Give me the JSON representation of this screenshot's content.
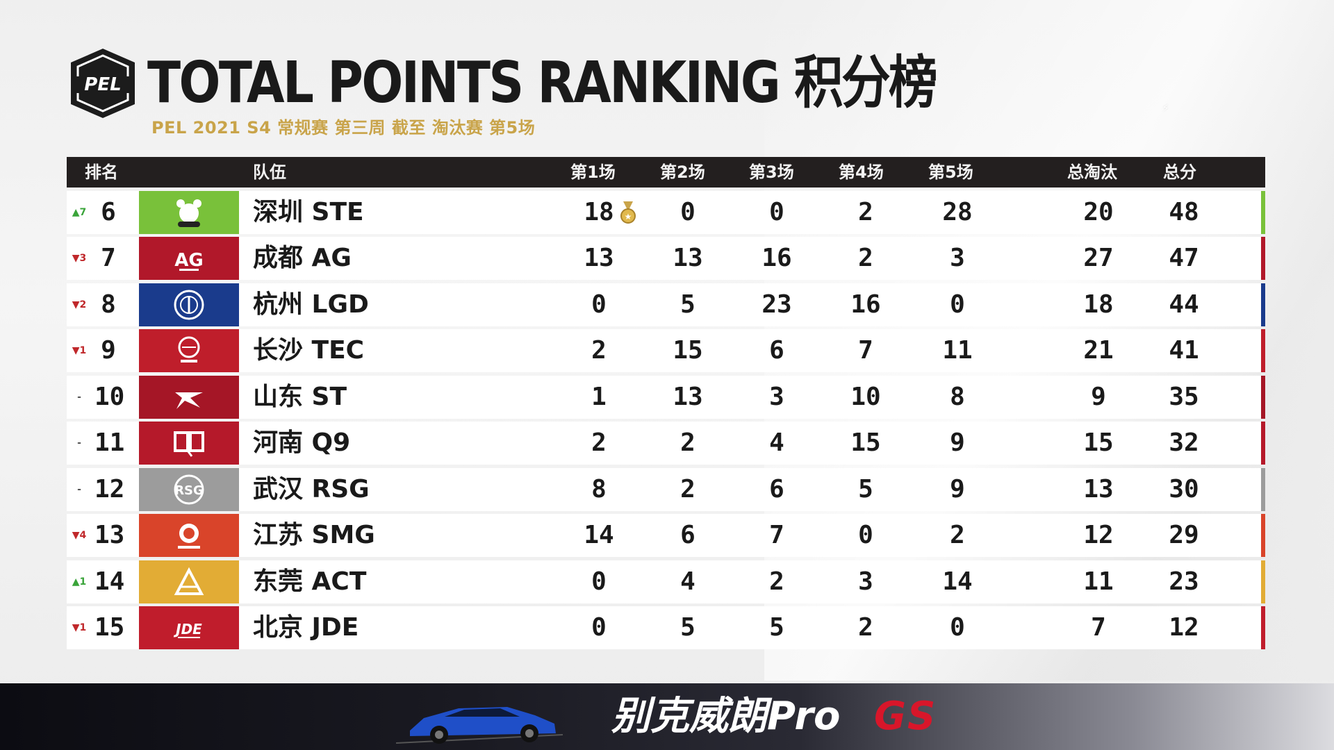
{
  "header": {
    "logo_text": "PEL",
    "title": "TOTAL POINTS RANKING 积分榜",
    "subtitle": "PEL 2021 S4 常规赛 第三周 截至 淘汰赛 第5场"
  },
  "table": {
    "columns": {
      "rank": "排名",
      "team": "队伍",
      "m1": "第1场",
      "m2": "第2场",
      "m3": "第3场",
      "m4": "第4场",
      "m5": "第5场",
      "kills": "总淘汰",
      "total": "总分"
    },
    "rows": [
      {
        "change": "▲7",
        "dir": "up",
        "rank": "6",
        "team": "深圳 STE",
        "logo_icon": "ste-bear-logo-icon",
        "color": "#79c13a",
        "m1": "18",
        "m2": "0",
        "m3": "0",
        "m4": "2",
        "m5": "28",
        "kills": "20",
        "total": "48",
        "medal": true
      },
      {
        "change": "▼3",
        "dir": "down",
        "rank": "7",
        "team": "成都 AG",
        "logo_icon": "ag-logo-icon",
        "color": "#b1182a",
        "m1": "13",
        "m2": "13",
        "m3": "16",
        "m4": "2",
        "m5": "3",
        "kills": "27",
        "total": "47"
      },
      {
        "change": "▼2",
        "dir": "down",
        "rank": "8",
        "team": "杭州 LGD",
        "logo_icon": "lgd-logo-icon",
        "color": "#1a3b8c",
        "m1": "0",
        "m2": "5",
        "m3": "23",
        "m4": "16",
        "m5": "0",
        "kills": "18",
        "total": "44"
      },
      {
        "change": "▼1",
        "dir": "down",
        "rank": "9",
        "team": "长沙 TEC",
        "logo_icon": "tec-logo-icon",
        "color": "#bf1e2b",
        "m1": "2",
        "m2": "15",
        "m3": "6",
        "m4": "7",
        "m5": "11",
        "kills": "21",
        "total": "41"
      },
      {
        "change": "-",
        "dir": "same",
        "rank": "10",
        "team": "山东 ST",
        "logo_icon": "st-logo-icon",
        "color": "#a51626",
        "m1": "1",
        "m2": "13",
        "m3": "3",
        "m4": "10",
        "m5": "8",
        "kills": "9",
        "total": "35"
      },
      {
        "change": "-",
        "dir": "same",
        "rank": "11",
        "team": "河南 Q9",
        "logo_icon": "q9-logo-icon",
        "color": "#b5192a",
        "m1": "2",
        "m2": "2",
        "m3": "4",
        "m4": "15",
        "m5": "9",
        "kills": "15",
        "total": "32"
      },
      {
        "change": "-",
        "dir": "same",
        "rank": "12",
        "team": "武汉 RSG",
        "logo_icon": "rsg-logo-icon",
        "color": "#9c9c9c",
        "m1": "8",
        "m2": "2",
        "m3": "6",
        "m4": "5",
        "m5": "9",
        "kills": "13",
        "total": "30"
      },
      {
        "change": "▼4",
        "dir": "down",
        "rank": "13",
        "team": "江苏 SMG",
        "logo_icon": "smg-logo-icon",
        "color": "#d9442a",
        "m1": "14",
        "m2": "6",
        "m3": "7",
        "m4": "0",
        "m5": "2",
        "kills": "12",
        "total": "29"
      },
      {
        "change": "▲1",
        "dir": "up",
        "rank": "14",
        "team": "东莞 ACT",
        "logo_icon": "act-logo-icon",
        "color": "#e2ac35",
        "m1": "0",
        "m2": "4",
        "m3": "2",
        "m4": "3",
        "m5": "14",
        "kills": "11",
        "total": "23"
      },
      {
        "change": "▼1",
        "dir": "down",
        "rank": "15",
        "team": "北京 JDE",
        "logo_icon": "jde-logo-icon",
        "color": "#c01d2c",
        "m1": "0",
        "m2": "5",
        "m3": "5",
        "m4": "2",
        "m5": "0",
        "kills": "7",
        "total": "12"
      }
    ]
  },
  "banner": {
    "text": "别克威朗Pro",
    "brand": "GS"
  }
}
